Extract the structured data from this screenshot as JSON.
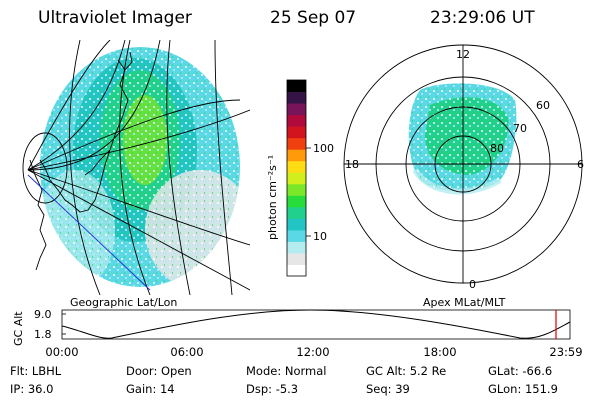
{
  "header": {
    "instrument": "Ultraviolet Imager",
    "date": "25 Sep 07",
    "time": "23:29:06 UT"
  },
  "left_panel": {
    "caption": "Geographic Lat/Lon"
  },
  "right_panel": {
    "caption": "Apex MLat/MLT",
    "mlt_labels": {
      "top": "12",
      "left": "18",
      "right": "6",
      "bottom": "0"
    },
    "lat_labels": [
      "60",
      "70",
      "80"
    ]
  },
  "colorbar": {
    "unit_label": "photon cm⁻²s⁻¹",
    "ticks": [
      "100",
      "10"
    ],
    "colors": [
      "#ffffff",
      "#e6e6e6",
      "#b4ecf0",
      "#5ad8e6",
      "#22c4c4",
      "#20d08c",
      "#28dc3c",
      "#7ce628",
      "#d2ee1c",
      "#ffdc14",
      "#ff9a0a",
      "#f04010",
      "#d2141e",
      "#b00a3c",
      "#78145a",
      "#341446",
      "#000000"
    ]
  },
  "altitude_plot": {
    "ylabel": "GC Alt",
    "y_ticks": [
      "9.0",
      "1.8"
    ],
    "x_ticks": [
      "00:00",
      "06:00",
      "12:00",
      "18:00",
      "23:59"
    ],
    "marker_color": "#e00000"
  },
  "status": {
    "row1": [
      {
        "label": "Flt:",
        "value": "LBHL"
      },
      {
        "label": "Door:",
        "value": "Open"
      },
      {
        "label": "Mode:",
        "value": "Normal"
      },
      {
        "label": "GC Alt:",
        "value": "5.2 Re"
      },
      {
        "label": "GLat:",
        "value": "-66.6"
      }
    ],
    "row2": [
      {
        "label": "IP:",
        "value": "36.0"
      },
      {
        "label": "Gain:",
        "value": "14"
      },
      {
        "label": "Dsp:",
        "value": "-5.3"
      },
      {
        "label": "Seq:",
        "value": "39"
      },
      {
        "label": "GLon:",
        "value": "151.9"
      }
    ]
  }
}
